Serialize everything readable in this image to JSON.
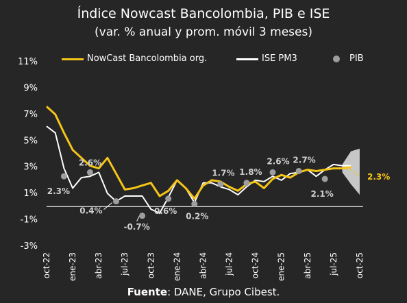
{
  "title": "Índice Nowcast Bancolombia, PIB e ISE",
  "subtitle": "(var. % anual y prom. móvil 3 meses)",
  "source_label": "Fuente",
  "source_text": ": DANE, Grupo Cibest.",
  "colors": {
    "background": "#262626",
    "nowcast": "#F5C518",
    "ise": "#FFFFFF",
    "pib": "#9E9E9E",
    "band": "#D9D9D9"
  },
  "chart_data": {
    "type": "line",
    "ylim": [
      -3,
      11
    ],
    "yticks": [
      11,
      9,
      7,
      5,
      3,
      1,
      -1,
      -3
    ],
    "ytick_labels": [
      "11%",
      "9%",
      "7%",
      "5%",
      "3%",
      "1%",
      "-1%",
      "-3%"
    ],
    "xtick_labels": [
      "oct-22",
      "ene-23",
      "abr-23",
      "jul-23",
      "oct-23",
      "ene-24",
      "abr-24",
      "jul-24",
      "oct-24",
      "ene-25",
      "abr-25",
      "jul-25",
      "oct-25"
    ],
    "xtick_months": [
      0,
      3,
      6,
      9,
      12,
      15,
      18,
      21,
      24,
      27,
      30,
      33,
      36
    ],
    "months": [
      0,
      1,
      2,
      3,
      4,
      5,
      6,
      7,
      8,
      9,
      10,
      11,
      12,
      13,
      14,
      15,
      16,
      17,
      18,
      19,
      20,
      21,
      22,
      23,
      24,
      25,
      26,
      27,
      28,
      29,
      30,
      31,
      32,
      33,
      34,
      35
    ],
    "series": [
      {
        "name": "NowCast Bancolombia org.",
        "values": [
          7.6,
          7.0,
          5.6,
          4.3,
          3.7,
          3.1,
          2.9,
          3.7,
          2.5,
          1.3,
          1.4,
          1.6,
          1.8,
          0.8,
          1.2,
          2.0,
          1.4,
          0.6,
          1.6,
          2.0,
          1.9,
          1.5,
          1.2,
          1.7,
          1.9,
          1.4,
          2.1,
          2.4,
          2.2,
          2.6,
          2.8,
          2.7,
          2.8,
          2.9,
          2.9,
          3.0
        ]
      },
      {
        "name": "ISE PM3",
        "values": [
          6.1,
          5.6,
          2.9,
          1.4,
          2.2,
          2.3,
          2.6,
          1.0,
          0.4,
          0.8,
          0.8,
          0.8,
          -0.2,
          -0.5,
          0.7,
          2.0,
          1.4,
          0.3,
          1.8,
          1.8,
          1.5,
          1.3,
          0.9,
          1.5,
          2.0,
          1.9,
          2.3,
          2.0,
          2.5,
          2.6,
          2.8,
          2.3,
          2.8,
          3.2,
          3.1,
          3.1
        ]
      }
    ],
    "pib": {
      "name": "PIB",
      "points": [
        {
          "month": 2,
          "value": 2.3,
          "label": "2.3%"
        },
        {
          "month": 5,
          "value": 2.6,
          "label": "2.6%"
        },
        {
          "month": 8,
          "value": 0.4,
          "label": "0.4%"
        },
        {
          "month": 11,
          "value": -0.7,
          "label": "-0.7%"
        },
        {
          "month": 14,
          "value": 0.6,
          "label": "0.6%"
        },
        {
          "month": 17,
          "value": 0.2,
          "label": "0.2%"
        },
        {
          "month": 20,
          "value": 1.7,
          "label": "1.7%"
        },
        {
          "month": 23,
          "value": 1.8,
          "label": "1.8%"
        },
        {
          "month": 26,
          "value": 2.6,
          "label": "2.6%"
        },
        {
          "month": 29,
          "value": 2.7,
          "label": "2.7%"
        },
        {
          "month": 32,
          "value": 2.1,
          "label": "2.1%"
        }
      ]
    },
    "forecast": {
      "months": [
        34,
        35,
        36
      ],
      "central": [
        2.9,
        2.8,
        2.3
      ],
      "lower": [
        2.6,
        1.7,
        0.9
      ],
      "upper": [
        3.2,
        4.2,
        4.4
      ],
      "label": "2.3%"
    }
  }
}
